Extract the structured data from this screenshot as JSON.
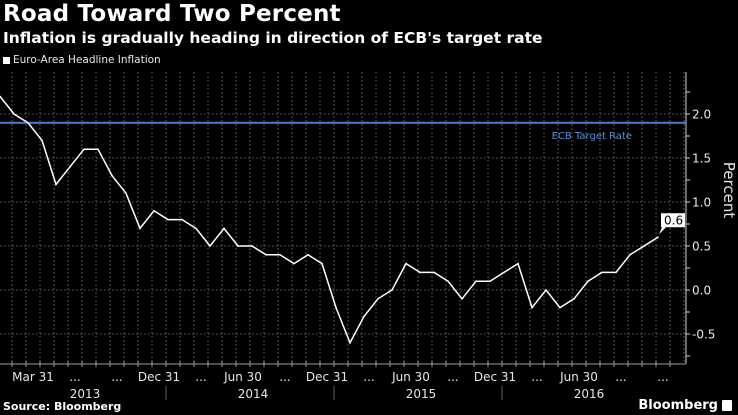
{
  "header": {
    "title": "Road Toward Two Percent",
    "subtitle": "Inflation is gradually heading in direction of ECB's target rate"
  },
  "footer": {
    "source": "Source: Bloomberg",
    "brand": "Bloomberg"
  },
  "chart_data": {
    "type": "line",
    "title": "Road Toward Two Percent",
    "subtitle": "Inflation is gradually heading in direction of ECB's target rate",
    "xlabel": "",
    "ylabel": "Percent",
    "ylim": [
      -0.85,
      2.4
    ],
    "yticks": [
      2.0,
      1.5,
      1.0,
      0.5,
      0.0,
      -0.5
    ],
    "ytick_labels": [
      "2.0",
      "1.5",
      "1.0",
      "0.5",
      "0.0",
      "-0.5"
    ],
    "grid": true,
    "legend": {
      "position": "top-left",
      "entries": [
        "Euro-Area Headline Inflation"
      ]
    },
    "x_start": "Jan 2013",
    "x_frequency": "monthly",
    "x_tick_labels": [
      {
        "index": 2,
        "label": "Mar 31"
      },
      {
        "index": 5,
        "label": "..."
      },
      {
        "index": 8,
        "label": "..."
      },
      {
        "index": 11,
        "label": "Dec 31"
      },
      {
        "index": 14,
        "label": "..."
      },
      {
        "index": 17,
        "label": "Jun 30"
      },
      {
        "index": 20,
        "label": "..."
      },
      {
        "index": 23,
        "label": "Dec 31"
      },
      {
        "index": 26,
        "label": "..."
      },
      {
        "index": 29,
        "label": "Jun 30"
      },
      {
        "index": 32,
        "label": "..."
      },
      {
        "index": 35,
        "label": "Dec 31"
      },
      {
        "index": 38,
        "label": "..."
      },
      {
        "index": 41,
        "label": "Jun 30"
      },
      {
        "index": 44,
        "label": "..."
      },
      {
        "index": 47,
        "label": "..."
      }
    ],
    "x_year_labels": [
      {
        "start": 0,
        "end": 11,
        "label": "2013"
      },
      {
        "start": 12,
        "end": 23,
        "label": "2014"
      },
      {
        "start": 24,
        "end": 35,
        "label": "2015"
      },
      {
        "start": 36,
        "end": 47,
        "label": "2016"
      }
    ],
    "series": [
      {
        "name": "Euro-Area Headline Inflation",
        "color": "#ffffff",
        "values": [
          2.2,
          2.0,
          1.9,
          1.7,
          1.2,
          1.4,
          1.6,
          1.6,
          1.3,
          1.1,
          0.7,
          0.9,
          0.8,
          0.8,
          0.7,
          0.5,
          0.7,
          0.5,
          0.5,
          0.4,
          0.4,
          0.3,
          0.4,
          0.3,
          -0.2,
          -0.6,
          -0.3,
          -0.1,
          0.0,
          0.3,
          0.2,
          0.2,
          0.1,
          -0.1,
          0.1,
          0.1,
          0.2,
          0.3,
          -0.2,
          0.0,
          -0.2,
          -0.1,
          0.1,
          0.2,
          0.2,
          0.4,
          0.5,
          0.6
        ]
      }
    ],
    "reference_line": {
      "label": "ECB Target Rate",
      "value": 1.9,
      "color": "#4a74c9"
    },
    "last_value_label": "0.6"
  }
}
